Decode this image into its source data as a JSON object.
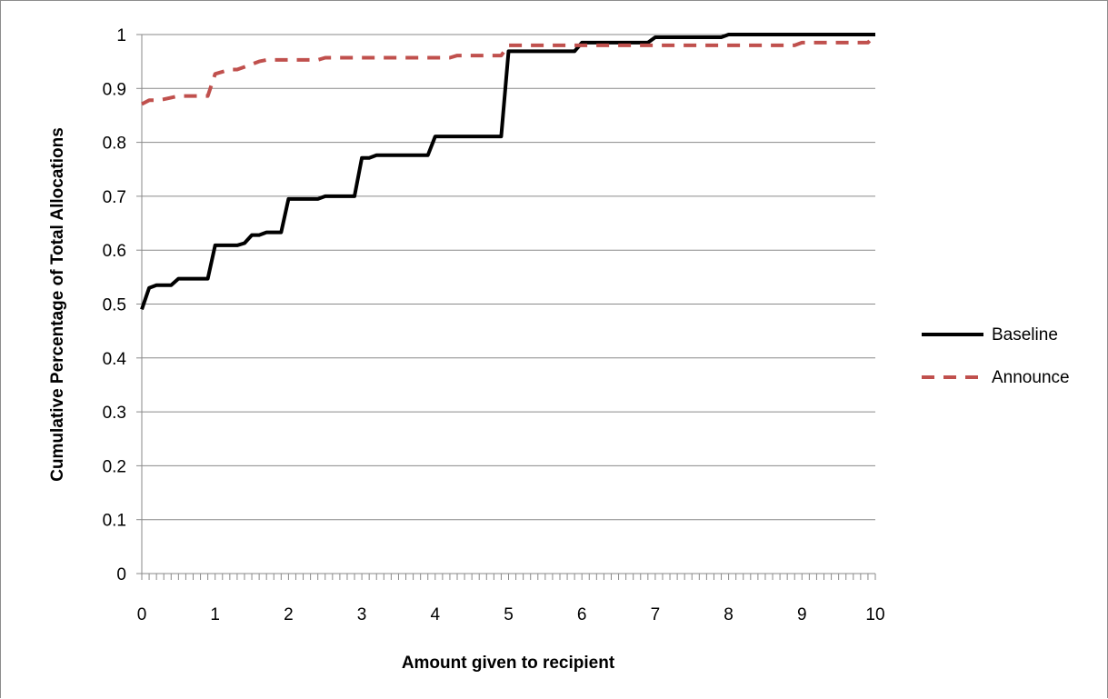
{
  "chart_data": {
    "type": "line",
    "title": "",
    "xlabel": "Amount given to recipient",
    "ylabel": "Cumulative Percentage of Total Allocations",
    "xlim": [
      0,
      10
    ],
    "ylim": [
      0,
      1
    ],
    "grid": "horizontal",
    "legend_position": "right",
    "x_tick_labels": [
      "0",
      "1",
      "2",
      "3",
      "4",
      "5",
      "6",
      "7",
      "8",
      "9",
      "10"
    ],
    "y_tick_labels": [
      "0",
      "0.1",
      "0.2",
      "0.3",
      "0.4",
      "0.5",
      "0.6",
      "0.7",
      "0.8",
      "0.9",
      "1"
    ],
    "series": [
      {
        "name": "Baseline",
        "color": "#000000",
        "style": "solid",
        "x": [
          0,
          0.1,
          0.2,
          0.3,
          0.4,
          0.5,
          0.6,
          0.7,
          0.8,
          0.9,
          1.0,
          1.1,
          1.2,
          1.3,
          1.4,
          1.5,
          1.6,
          1.7,
          1.8,
          1.9,
          2.0,
          2.1,
          2.2,
          2.3,
          2.4,
          2.5,
          2.6,
          2.7,
          2.8,
          2.9,
          3.0,
          3.1,
          3.2,
          3.3,
          3.4,
          3.5,
          3.6,
          3.7,
          3.8,
          3.9,
          4.0,
          4.1,
          4.2,
          4.3,
          4.4,
          4.5,
          4.6,
          4.7,
          4.8,
          4.9,
          5.0,
          5.1,
          5.2,
          5.3,
          5.4,
          5.5,
          5.6,
          5.7,
          5.8,
          5.9,
          6.0,
          6.1,
          6.2,
          6.3,
          6.4,
          6.5,
          6.6,
          6.7,
          6.8,
          6.9,
          7.0,
          7.1,
          7.2,
          7.3,
          7.4,
          7.5,
          7.6,
          7.7,
          7.8,
          7.9,
          8.0,
          8.1,
          8.2,
          8.3,
          8.4,
          8.5,
          8.6,
          8.7,
          8.8,
          8.9,
          9.0,
          9.1,
          9.2,
          9.3,
          9.4,
          9.5,
          9.6,
          9.7,
          9.8,
          9.9,
          10.0
        ],
        "values": [
          0.49,
          0.53,
          0.535,
          0.535,
          0.535,
          0.547,
          0.547,
          0.547,
          0.547,
          0.547,
          0.609,
          0.609,
          0.609,
          0.609,
          0.613,
          0.628,
          0.628,
          0.633,
          0.633,
          0.633,
          0.695,
          0.695,
          0.695,
          0.695,
          0.695,
          0.7,
          0.7,
          0.7,
          0.7,
          0.7,
          0.771,
          0.771,
          0.776,
          0.776,
          0.776,
          0.776,
          0.776,
          0.776,
          0.776,
          0.776,
          0.811,
          0.811,
          0.811,
          0.811,
          0.811,
          0.811,
          0.811,
          0.811,
          0.811,
          0.811,
          0.969,
          0.969,
          0.969,
          0.969,
          0.969,
          0.969,
          0.969,
          0.969,
          0.969,
          0.969,
          0.985,
          0.985,
          0.985,
          0.985,
          0.985,
          0.985,
          0.985,
          0.985,
          0.985,
          0.985,
          0.995,
          0.995,
          0.995,
          0.995,
          0.995,
          0.995,
          0.995,
          0.995,
          0.995,
          0.995,
          1.0,
          1.0,
          1.0,
          1.0,
          1.0,
          1.0,
          1.0,
          1.0,
          1.0,
          1.0,
          1.0,
          1.0,
          1.0,
          1.0,
          1.0,
          1.0,
          1.0,
          1.0,
          1.0,
          1.0,
          1.0
        ]
      },
      {
        "name": "Announce",
        "color": "#c0504d",
        "style": "dashed",
        "x": [
          0,
          0.1,
          0.2,
          0.3,
          0.4,
          0.5,
          0.6,
          0.7,
          0.8,
          0.9,
          1.0,
          1.1,
          1.2,
          1.3,
          1.4,
          1.5,
          1.6,
          1.7,
          1.8,
          1.9,
          2.0,
          2.1,
          2.2,
          2.3,
          2.4,
          2.5,
          2.6,
          2.7,
          2.8,
          2.9,
          3.0,
          3.1,
          3.2,
          3.3,
          3.4,
          3.5,
          3.6,
          3.7,
          3.8,
          3.9,
          4.0,
          4.1,
          4.2,
          4.3,
          4.4,
          4.5,
          4.6,
          4.7,
          4.8,
          4.9,
          5.0,
          5.1,
          5.2,
          5.3,
          5.4,
          5.5,
          5.6,
          5.7,
          5.8,
          5.9,
          6.0,
          6.1,
          6.2,
          6.3,
          6.4,
          6.5,
          6.6,
          6.7,
          6.8,
          6.9,
          7.0,
          7.1,
          7.2,
          7.3,
          7.4,
          7.5,
          7.6,
          7.7,
          7.8,
          7.9,
          8.0,
          8.1,
          8.2,
          8.3,
          8.4,
          8.5,
          8.6,
          8.7,
          8.8,
          8.9,
          9.0,
          9.1,
          9.2,
          9.3,
          9.4,
          9.5,
          9.6,
          9.7,
          9.8,
          9.9,
          10.0
        ],
        "values": [
          0.871,
          0.878,
          0.878,
          0.88,
          0.883,
          0.886,
          0.886,
          0.886,
          0.886,
          0.886,
          0.927,
          0.931,
          0.935,
          0.935,
          0.94,
          0.945,
          0.95,
          0.953,
          0.953,
          0.953,
          0.953,
          0.953,
          0.953,
          0.953,
          0.953,
          0.957,
          0.957,
          0.957,
          0.957,
          0.957,
          0.957,
          0.957,
          0.957,
          0.957,
          0.957,
          0.957,
          0.957,
          0.957,
          0.957,
          0.957,
          0.957,
          0.957,
          0.957,
          0.961,
          0.961,
          0.961,
          0.961,
          0.961,
          0.961,
          0.961,
          0.98,
          0.98,
          0.98,
          0.98,
          0.98,
          0.98,
          0.98,
          0.98,
          0.98,
          0.98,
          0.98,
          0.98,
          0.98,
          0.98,
          0.98,
          0.98,
          0.98,
          0.98,
          0.98,
          0.98,
          0.98,
          0.98,
          0.98,
          0.98,
          0.98,
          0.98,
          0.98,
          0.98,
          0.98,
          0.98,
          0.98,
          0.98,
          0.98,
          0.98,
          0.98,
          0.98,
          0.98,
          0.98,
          0.98,
          0.98,
          0.985,
          0.985,
          0.985,
          0.985,
          0.985,
          0.985,
          0.985,
          0.985,
          0.985,
          0.985,
          1.0
        ]
      }
    ]
  }
}
